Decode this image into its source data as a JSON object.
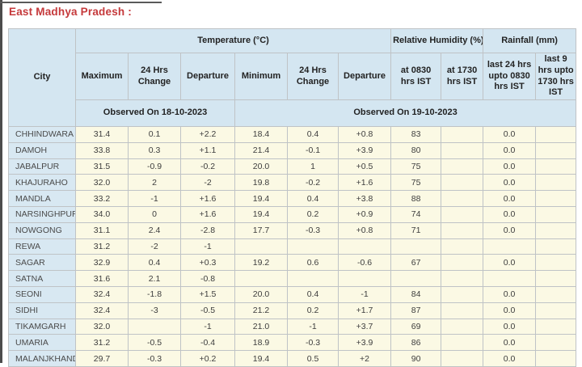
{
  "page": {
    "title": "East Madhya Pradesh :"
  },
  "colors": {
    "title_red": "#c5393b",
    "observed_red": "#e25757",
    "header_blue": "#d4e6f1",
    "city_blue": "#d8e8f2",
    "cell_cream": "#fbf9e4",
    "border_gray": "#bfc3c6"
  },
  "table": {
    "header": {
      "city": "City",
      "groups": [
        "Temperature (°C)",
        "Relative Humidity (%)",
        "Rainfall (mm)"
      ],
      "sub": [
        "Maximum",
        "24 Hrs Change",
        "Departure",
        "Minimum",
        "24 Hrs Change",
        "Departure",
        "at 0830 hrs IST",
        "at 1730 hrs IST",
        "last 24 hrs upto 0830 hrs IST",
        "last 9 hrs upto 1730 hrs IST"
      ],
      "observed": [
        "Observed On 18-10-2023",
        "Observed On 19-10-2023"
      ]
    },
    "rows": [
      {
        "city": "CHHINDWARA",
        "values": [
          "31.4",
          "0.1",
          "+2.2",
          "18.4",
          "0.4",
          "+0.8",
          "83",
          "",
          "0.0",
          ""
        ]
      },
      {
        "city": "DAMOH",
        "values": [
          "33.8",
          "0.3",
          "+1.1",
          "21.4",
          "-0.1",
          "+3.9",
          "80",
          "",
          "0.0",
          ""
        ]
      },
      {
        "city": "JABALPUR",
        "values": [
          "31.5",
          "-0.9",
          "-0.2",
          "20.0",
          "1",
          "+0.5",
          "75",
          "",
          "0.0",
          ""
        ]
      },
      {
        "city": "KHAJURAHO",
        "values": [
          "32.0",
          "2",
          "-2",
          "19.8",
          "-0.2",
          "+1.6",
          "75",
          "",
          "0.0",
          ""
        ]
      },
      {
        "city": "MANDLA",
        "values": [
          "33.2",
          "-1",
          "+1.6",
          "19.4",
          "0.4",
          "+3.8",
          "88",
          "",
          "0.0",
          ""
        ]
      },
      {
        "city": "NARSINGHPUR",
        "values": [
          "34.0",
          "0",
          "+1.6",
          "19.4",
          "0.2",
          "+0.9",
          "74",
          "",
          "0.0",
          ""
        ]
      },
      {
        "city": "NOWGONG",
        "values": [
          "31.1",
          "2.4",
          "-2.8",
          "17.7",
          "-0.3",
          "+0.8",
          "71",
          "",
          "0.0",
          ""
        ]
      },
      {
        "city": "REWA",
        "values": [
          "31.2",
          "-2",
          "-1",
          "",
          "",
          "",
          "",
          "",
          "",
          ""
        ]
      },
      {
        "city": "SAGAR",
        "values": [
          "32.9",
          "0.4",
          "+0.3",
          "19.2",
          "0.6",
          "-0.6",
          "67",
          "",
          "0.0",
          ""
        ]
      },
      {
        "city": "SATNA",
        "values": [
          "31.6",
          "2.1",
          "-0.8",
          "",
          "",
          "",
          "",
          "",
          "",
          ""
        ]
      },
      {
        "city": "SEONI",
        "values": [
          "32.4",
          "-1.8",
          "+1.5",
          "20.0",
          "0.4",
          "-1",
          "84",
          "",
          "0.0",
          ""
        ]
      },
      {
        "city": "SIDHI",
        "values": [
          "32.4",
          "-3",
          "-0.5",
          "21.2",
          "0.2",
          "+1.7",
          "87",
          "",
          "0.0",
          ""
        ]
      },
      {
        "city": "TIKAMGARH",
        "values": [
          "32.0",
          "",
          "-1",
          "21.0",
          "-1",
          "+3.7",
          "69",
          "",
          "0.0",
          ""
        ]
      },
      {
        "city": "UMARIA",
        "values": [
          "31.2",
          "-0.5",
          "-0.4",
          "18.9",
          "-0.3",
          "+3.9",
          "86",
          "",
          "0.0",
          ""
        ]
      },
      {
        "city": "MALANJKHAND",
        "values": [
          "29.7",
          "-0.3",
          "+0.2",
          "19.4",
          "0.5",
          "+2",
          "90",
          "",
          "0.0",
          ""
        ]
      }
    ]
  }
}
